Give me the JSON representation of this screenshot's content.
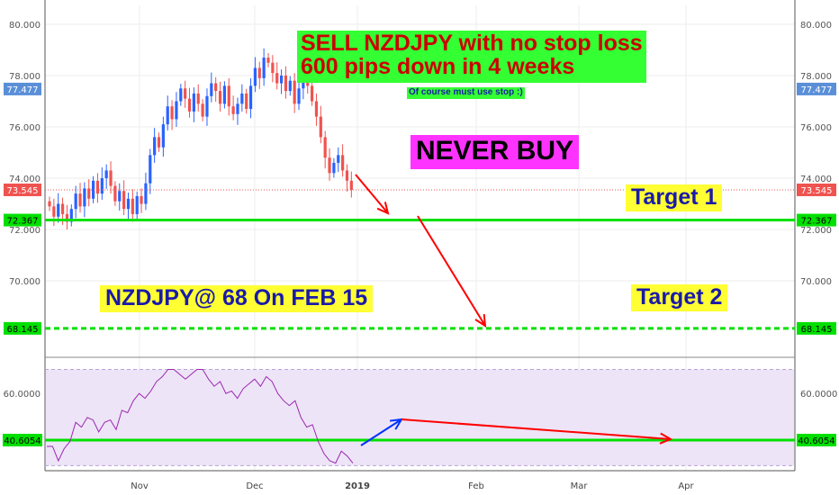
{
  "colors": {
    "up": "#2962ff",
    "down": "#ef5350",
    "support_line": "#00e000",
    "rsi_line": "#9c27b0",
    "rsi_band": "#ede4f7",
    "arrow_red": "#ff0000",
    "arrow_blue": "#0033ff",
    "badge_current": "#ef5350",
    "badge_level": "#00e000",
    "badge_blue": "#5a8fd8"
  },
  "chart_data": [
    {
      "type": "candlestick",
      "symbol": "NZDJPY",
      "yaxis": {
        "range": [
          65.2,
          81.0
        ],
        "ticks": [
          "70.000",
          "72.000",
          "74.000",
          "76.000",
          "78.000",
          "80.000"
        ]
      },
      "xaxis": {
        "ticks": [
          "Nov",
          "Dec",
          "2019",
          "Feb",
          "Mar",
          "Apr"
        ],
        "bold_ticks": [
          "2019"
        ]
      },
      "price_badges": [
        {
          "label": "77.477",
          "value": 77.477,
          "color": "badge_blue"
        },
        {
          "label": "73.545",
          "value": 73.545,
          "color": "badge_current"
        },
        {
          "label": "72.367",
          "value": 72.367,
          "color": "badge_level"
        },
        {
          "label": "68.145",
          "value": 68.145,
          "color": "badge_level"
        }
      ],
      "horizontal_lines": [
        {
          "value": 73.545,
          "style": "dotted",
          "color": "down"
        },
        {
          "value": 72.367,
          "style": "solid",
          "color": "support_line"
        },
        {
          "value": 68.145,
          "style": "dashed",
          "color": "support_line"
        }
      ],
      "candles_close": [
        72.9,
        72.5,
        73.0,
        72.6,
        72.3,
        72.8,
        73.4,
        72.9,
        73.6,
        73.2,
        73.9,
        73.4,
        74.0,
        74.3,
        73.7,
        73.1,
        73.5,
        72.8,
        73.2,
        72.6,
        73.3,
        73.0,
        73.8,
        74.9,
        75.6,
        75.2,
        76.1,
        76.8,
        76.3,
        77.0,
        77.5,
        77.1,
        76.6,
        77.3,
        76.9,
        76.4,
        77.2,
        77.7,
        77.4,
        76.9,
        77.6,
        76.8,
        76.5,
        76.9,
        77.3,
        76.7,
        77.6,
        78.3,
        77.9,
        78.7,
        78.5,
        78.1,
        77.7,
        78.0,
        77.4,
        77.8,
        76.9,
        77.5,
        77.9,
        77.6,
        77.0,
        76.4,
        75.6,
        74.8,
        74.2,
        74.6,
        74.9,
        74.3,
        73.9,
        73.545
      ],
      "rsi": {
        "yaxis": {
          "range": [
            27,
            73
          ],
          "ticks": [
            "60.0000"
          ]
        },
        "badges": [
          {
            "label": "60.0000",
            "value": 60.0,
            "style": "plain"
          },
          {
            "label": "40.6054",
            "value": 40.6054,
            "color": "badge_level"
          }
        ],
        "band": [
          30,
          70
        ],
        "level_line": 40.6054,
        "values": [
          38,
          38,
          32,
          37,
          40,
          48,
          46,
          50,
          49,
          44,
          48,
          49,
          45,
          53,
          52,
          57,
          60,
          58,
          61,
          65,
          67,
          70,
          70,
          68,
          66,
          68,
          70,
          70,
          66,
          63,
          65,
          60,
          61,
          58,
          62,
          64,
          66,
          63,
          67,
          65,
          60,
          57,
          55,
          57,
          50,
          46,
          47,
          40,
          35,
          32,
          31,
          36,
          34,
          31
        ]
      }
    }
  ],
  "annotations": {
    "headline_line1": "SELL NZDJPY with no stop loss",
    "headline_line2": "600 pips down in 4 weeks",
    "note": "Of course must use stop :)",
    "never_buy": "NEVER BUY",
    "target1": "Target 1",
    "target2": "Target 2",
    "target_date": "NZDJPY@ 68 On FEB 15"
  }
}
